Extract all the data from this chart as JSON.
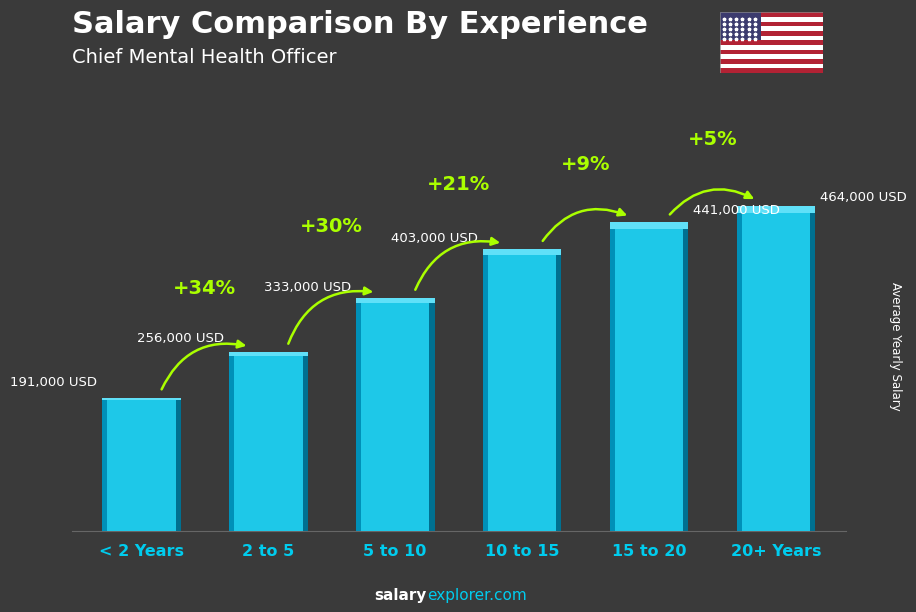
{
  "title": "Salary Comparison By Experience",
  "subtitle": "Chief Mental Health Officer",
  "categories": [
    "< 2 Years",
    "2 to 5",
    "5 to 10",
    "10 to 15",
    "15 to 20",
    "20+ Years"
  ],
  "values": [
    191000,
    256000,
    333000,
    403000,
    441000,
    464000
  ],
  "value_labels": [
    "191,000 USD",
    "256,000 USD",
    "333,000 USD",
    "403,000 USD",
    "441,000 USD",
    "464,000 USD"
  ],
  "pct_changes": [
    "+34%",
    "+30%",
    "+21%",
    "+9%",
    "+5%"
  ],
  "bar_color_main": "#1EC8E8",
  "bar_color_left": "#0090B8",
  "bar_color_right": "#007090",
  "bar_color_top": "#60E0F8",
  "bg_color": "#3a3a3a",
  "title_color": "#ffffff",
  "subtitle_color": "#ffffff",
  "value_label_color": "#ffffff",
  "pct_color": "#aaff00",
  "xticklabel_color": "#00CCEE",
  "ylabel_text": "Average Yearly Salary",
  "footer_salary_color": "#ffffff",
  "footer_explorer_color": "#00CCEE",
  "ylim_max": 530000,
  "bar_width": 0.62,
  "bar_gap": 0.38
}
